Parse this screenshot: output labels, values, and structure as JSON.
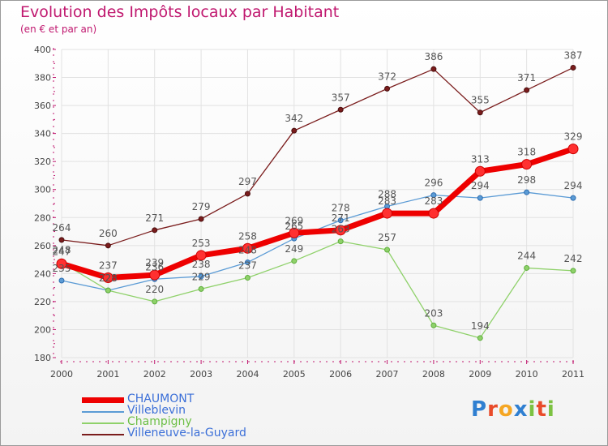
{
  "header": {
    "title": "Evolution des Impôts locaux par Habitant",
    "subtitle": "(en € et par an)"
  },
  "brand": {
    "letters": [
      {
        "ch": "P",
        "color": "#2f7fd1"
      },
      {
        "ch": "r",
        "color": "#e94b2a"
      },
      {
        "ch": "o",
        "color": "#f5a623"
      },
      {
        "ch": "x",
        "color": "#2f7fd1"
      },
      {
        "ch": "i",
        "color": "#7cc242"
      },
      {
        "ch": "t",
        "color": "#e94b2a"
      },
      {
        "ch": "i",
        "color": "#7cc242"
      }
    ]
  },
  "chart_data": {
    "type": "line",
    "categories": [
      "2000",
      "2001",
      "2002",
      "2003",
      "2004",
      "2005",
      "2006",
      "2007",
      "2008",
      "2009",
      "2010",
      "2011"
    ],
    "ylim": [
      180,
      400
    ],
    "yticks": [
      180,
      200,
      220,
      240,
      260,
      280,
      300,
      320,
      340,
      360,
      380,
      400
    ],
    "grid": true,
    "legend_position": "bottom-left",
    "series": [
      {
        "name": "Villeneuve-la-Guyard",
        "color": "#7a1c1c",
        "values": [
          264,
          260,
          271,
          279,
          297,
          342,
          357,
          372,
          386,
          355,
          371,
          387
        ]
      },
      {
        "name": "Villeblevin",
        "color": "#5b9bd5",
        "values": [
          235,
          228,
          236,
          238,
          248,
          265,
          278,
          288,
          296,
          294,
          298,
          294
        ]
      },
      {
        "name": "Champigny",
        "color": "#8fd16a",
        "values": [
          248,
          228,
          220,
          229,
          237,
          249,
          263,
          257,
          203,
          194,
          244,
          242
        ]
      },
      {
        "name": "CHAUMONT",
        "color": "#ee0000",
        "values": [
          247,
          237,
          239,
          253,
          258,
          269,
          271,
          283,
          283,
          313,
          318,
          329
        ]
      }
    ]
  }
}
